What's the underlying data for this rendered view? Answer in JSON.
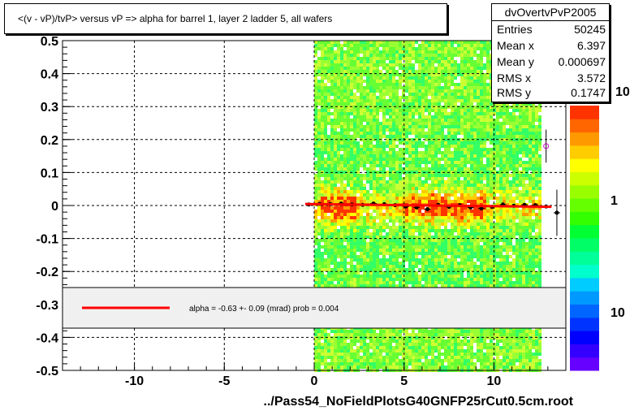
{
  "header": {
    "title": "<(v - vP)/tvP> versus   vP => alpha for barrel 1, layer 2 ladder 5, all wafers"
  },
  "stats": {
    "name": "dvOvertvPvP2005",
    "rows": [
      {
        "label": "Entries",
        "value": "50245"
      },
      {
        "label": "Mean x",
        "value": "6.397"
      },
      {
        "label": "Mean y",
        "value": "0.000697"
      },
      {
        "label": "RMS x",
        "value": "3.572"
      },
      {
        "label": "RMS y",
        "value": "0.1747"
      }
    ]
  },
  "fit_legend": {
    "text": "alpha =   -0.63 +-  0.09 (mrad) prob = 0.004",
    "line_color": "#ff0000"
  },
  "footer": {
    "xlabel": "../Pass54_NoFieldPlotsG40GNFP25rCut0.5cm.root"
  },
  "palette_labels": [
    "10",
    "1",
    "10"
  ],
  "chart_data": {
    "type": "heatmap",
    "xlim": [
      -14,
      14
    ],
    "ylim": [
      -0.5,
      0.5
    ],
    "xticks": [
      -10,
      -5,
      0,
      5,
      10
    ],
    "xtick_labels": [
      "-10",
      "-5",
      "0",
      "5",
      "10"
    ],
    "yticks": [
      -0.5,
      -0.4,
      -0.3,
      -0.2,
      -0.1,
      0,
      0.1,
      0.2,
      0.3,
      0.4,
      0.5
    ],
    "ytick_labels": [
      "-0.5",
      "-0.4",
      "-0.3",
      "-0.2",
      "-0.1",
      "0",
      "0.1",
      "0.2",
      "0.3",
      "0.4",
      "0.5"
    ],
    "grid": true,
    "heatmap_x_range": [
      0,
      12.6
    ],
    "profile_points": {
      "x": [
        -0.3,
        0.3,
        0.9,
        1.5,
        2.1,
        2.7,
        3.3,
        3.9,
        4.5,
        5.1,
        5.7,
        6.3,
        6.9,
        7.5,
        8.1,
        8.7,
        9.3,
        9.9,
        10.5,
        11.1,
        11.7,
        12.3,
        12.9,
        13.5
      ],
      "y": [
        0.003,
        0.005,
        0.004,
        0.006,
        0.003,
        0.002,
        0.006,
        0.004,
        0.001,
        -0.003,
        -0.006,
        -0.011,
        0.002,
        -0.004,
        0.001,
        -0.006,
        -0.009,
        -0.004,
        0.003,
        -0.001,
        0.002,
        0.001,
        -0.003,
        -0.022
      ]
    },
    "fit_line": {
      "x": [
        -0.5,
        13.2
      ],
      "y": [
        0.0045,
        -0.0041
      ],
      "color": "#ff0000"
    },
    "outlier_point": {
      "x": 12.9,
      "y": 0.18
    }
  }
}
